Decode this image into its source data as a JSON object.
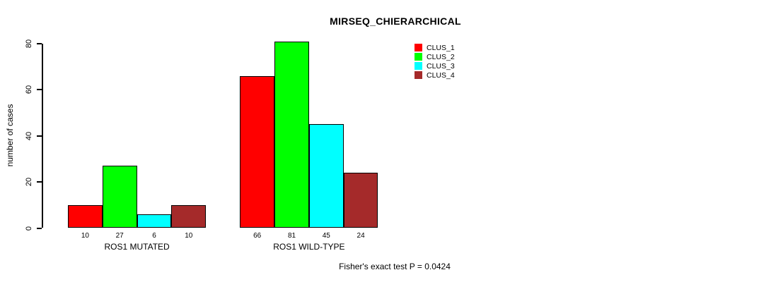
{
  "chart_data": {
    "type": "bar",
    "title": "MIRSEQ_CHIERARCHICAL",
    "xlabel": "",
    "ylabel": "number of cases",
    "ylim": [
      0,
      80
    ],
    "yticks": [
      0,
      20,
      40,
      60,
      80
    ],
    "categories": [
      "ROS1 MUTATED",
      "ROS1 WILD-TYPE"
    ],
    "series": [
      {
        "name": "CLUS_1",
        "color": "#ff0000",
        "values": [
          10,
          66
        ]
      },
      {
        "name": "CLUS_2",
        "color": "#00ff00",
        "values": [
          27,
          81
        ]
      },
      {
        "name": "CLUS_3",
        "color": "#00ffff",
        "values": [
          6,
          45
        ]
      },
      {
        "name": "CLUS_4",
        "color": "#a52a2a",
        "values": [
          10,
          24
        ]
      }
    ],
    "bar_value_labels_shown": true,
    "legend_position": "top-right",
    "grid": false
  },
  "annotation": "Fisher's exact test P = 0.0424"
}
